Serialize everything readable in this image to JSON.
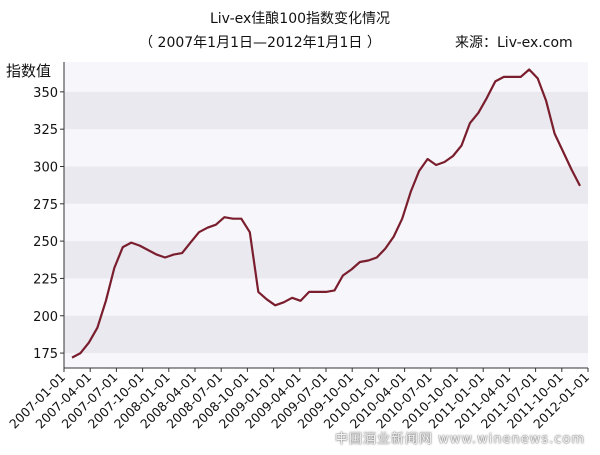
{
  "title": "Liv-ex佳酿100指数变化情况",
  "subtitle": "（ 2007年1月1日—2012年1月1日 ）",
  "source": "来源：Liv-ex.com",
  "watermark": "中国酒业新闻网  www.winenews.com",
  "chart_data": {
    "type": "line",
    "title": "Liv-ex佳酿100指数变化情况",
    "subtitle": "（ 2007年1月1日—2012年1月1日 ）",
    "ylabel": "指数值",
    "xlabel": "",
    "ylim": [
      165,
      370
    ],
    "yticks": [
      175,
      200,
      225,
      250,
      275,
      300,
      325,
      350
    ],
    "grid": "horizontal alternating bands",
    "line_color": "#7a1e2e",
    "band_color": "#e9e9ef",
    "xticks": [
      "2007-01-01",
      "2007-04-01",
      "2007-07-01",
      "2007-10-01",
      "2008-01-01",
      "2008-04-01",
      "2008-07-01",
      "2008-10-01",
      "2009-01-01",
      "2009-04-01",
      "2009-07-01",
      "2009-10-01",
      "2010-01-01",
      "2010-04-01",
      "2010-07-01",
      "2010-10-01",
      "2011-01-01",
      "2011-04-01",
      "2011-07-01",
      "2011-10-01",
      "2012-01-01"
    ],
    "series": [
      {
        "values": [
          172,
          175,
          182,
          192,
          210,
          232,
          246,
          249,
          247,
          244,
          241,
          239,
          241,
          242,
          249,
          256,
          259,
          261,
          266,
          265,
          265,
          256,
          216,
          211,
          207,
          209,
          212,
          210,
          216,
          216,
          216,
          217,
          227,
          231,
          236,
          237,
          239,
          245,
          253,
          265,
          283,
          297,
          305,
          301,
          303,
          307,
          314,
          329,
          336,
          346,
          357,
          360,
          360,
          360,
          365,
          359,
          344,
          322,
          310,
          298,
          287
        ]
      }
    ]
  }
}
